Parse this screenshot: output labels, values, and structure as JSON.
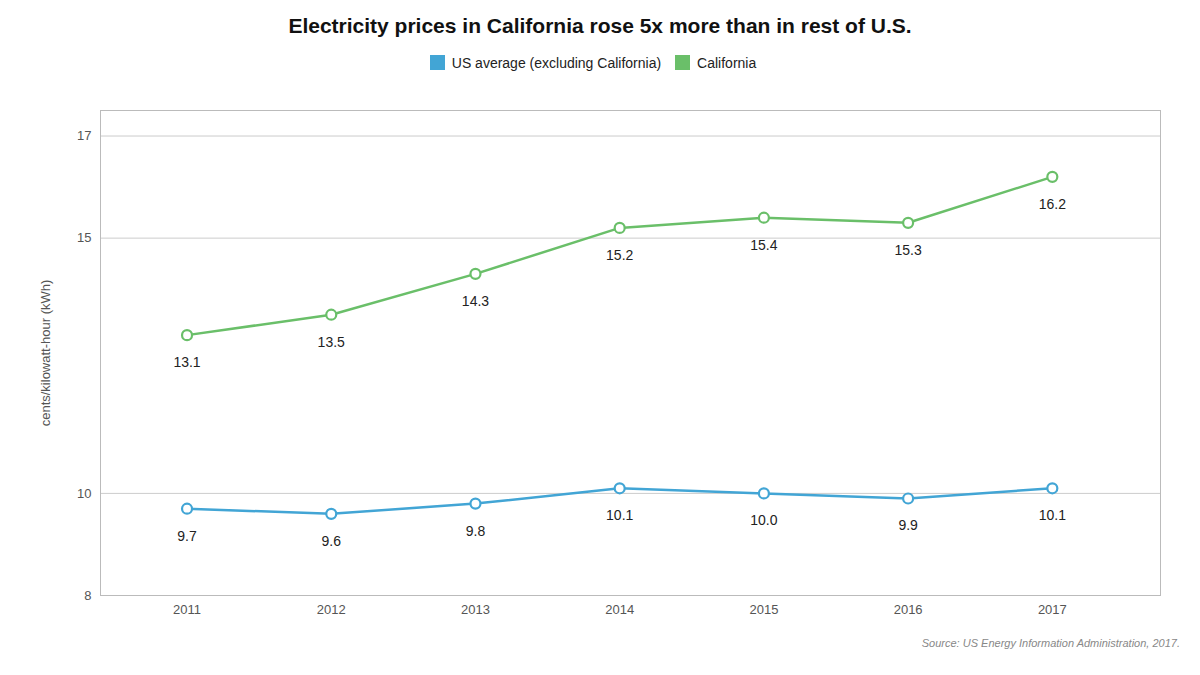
{
  "chart_data": {
    "type": "line",
    "title": "Electricity prices in California rose 5x more than in rest of U.S.",
    "ylabel": "cents/kilowatt-hour (kWh)",
    "caption": "Source: US Energy Information Administration, 2017.",
    "x": [
      2011,
      2012,
      2013,
      2014,
      2015,
      2016,
      2017
    ],
    "series": [
      {
        "name": "US average (excluding California)",
        "color": "#42a5d5",
        "values": [
          9.7,
          9.6,
          9.8,
          10.1,
          10.0,
          9.9,
          10.1
        ],
        "value_labels": [
          "9.7",
          "9.6",
          "9.8",
          "10.1",
          "10.0",
          "9.9",
          "10.1"
        ]
      },
      {
        "name": "California",
        "color": "#6abf69",
        "values": [
          13.1,
          13.5,
          14.3,
          15.2,
          15.4,
          15.3,
          16.2
        ]
      }
    ],
    "xlim": [
      2010.4,
      2017.75
    ],
    "xticks": [
      2011,
      2012,
      2013,
      2014,
      2015,
      2016,
      2017
    ],
    "ylim": [
      8,
      17.5
    ],
    "yticks": [
      8,
      10,
      15,
      17
    ],
    "grid": "y",
    "legend": "top",
    "marker": "circle",
    "data_labels": true
  }
}
